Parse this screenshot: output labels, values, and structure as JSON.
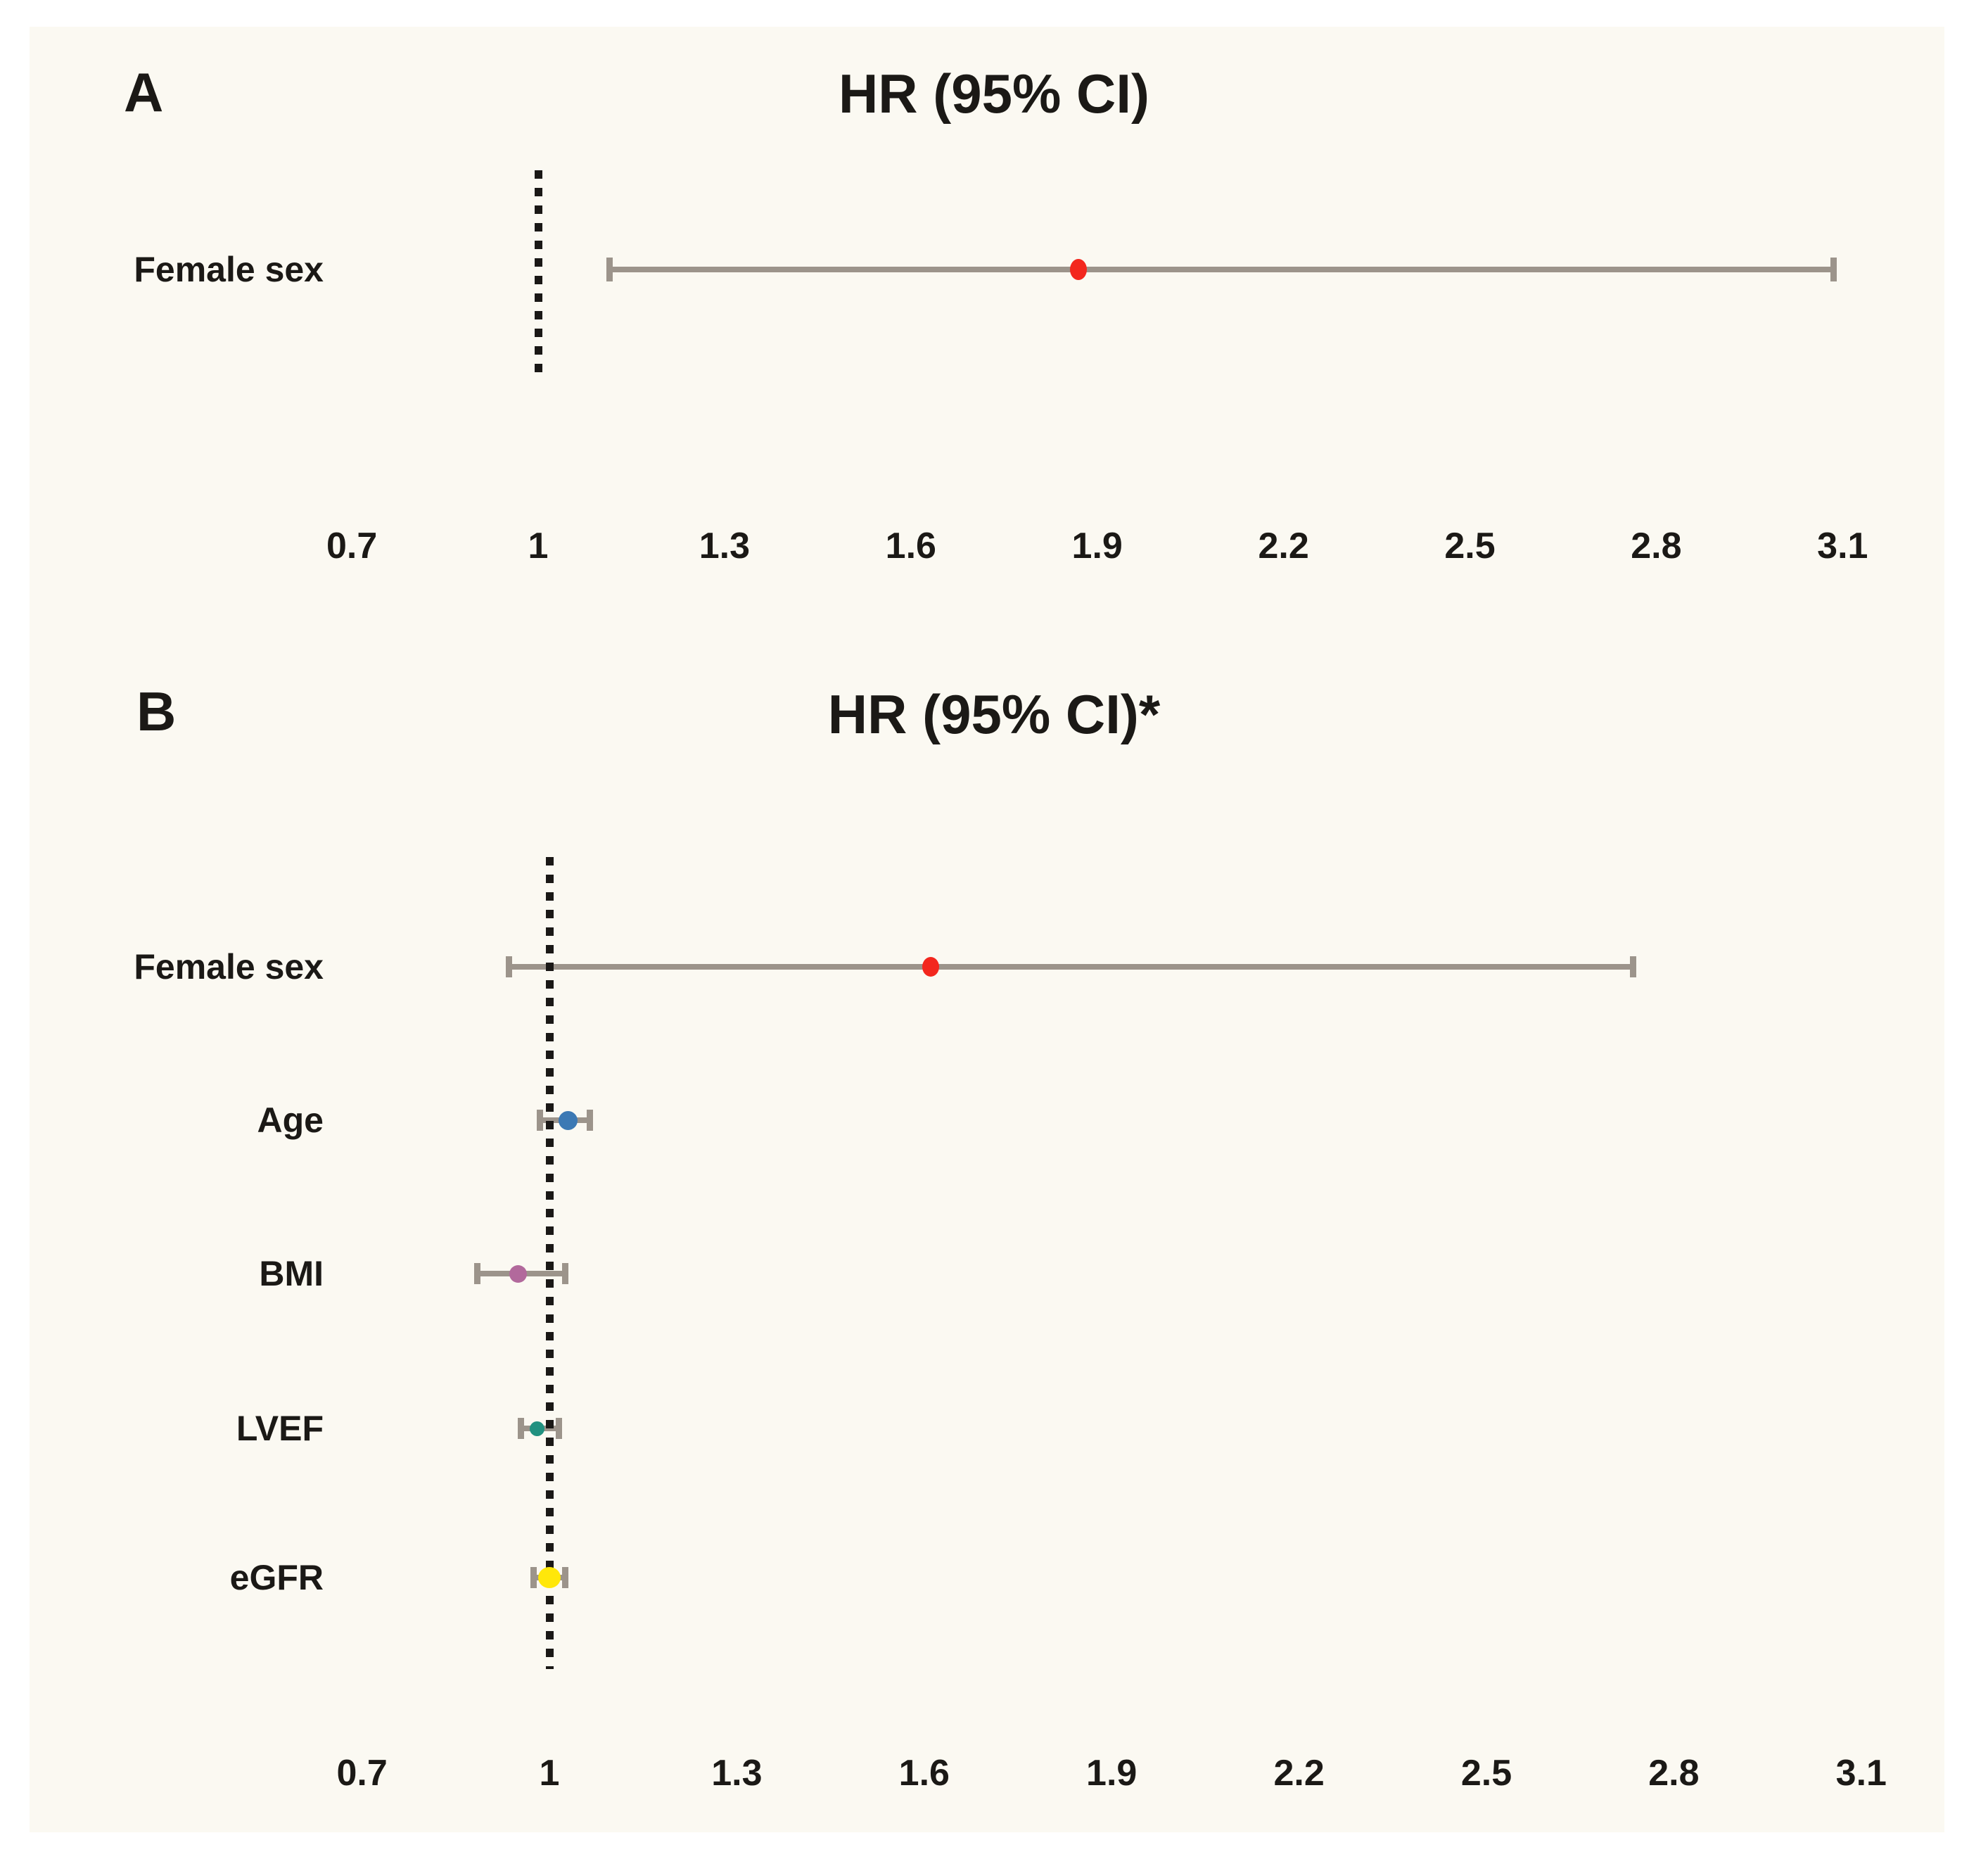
{
  "figure": {
    "background_color": "#FBF9F2",
    "ci_bar_color": "#9C948B",
    "reference_line_color": "#1A1816",
    "text_color": "#1B1916"
  },
  "chart_data": [
    {
      "type": "forest",
      "panel_label": "A",
      "title": "HR (95% CI)",
      "xlabel": "",
      "legend": "none",
      "grid": false,
      "reference_value": 1,
      "x_axis": {
        "tick_labels": [
          "0.7",
          "1",
          "1.3",
          "1.6",
          "1.9",
          "2.2",
          "2.5",
          "2.8",
          "3.1"
        ],
        "tick_values": [
          0.7,
          1,
          1.3,
          1.6,
          1.9,
          2.2,
          2.5,
          2.8,
          3.1
        ],
        "xlim": [
          0.55,
          3.3
        ]
      },
      "rows": [
        {
          "label": "Female sex",
          "hr": 1.87,
          "ci_low": 1.12,
          "ci_high": 3.08,
          "marker_color": "#F3271E"
        }
      ]
    },
    {
      "type": "forest",
      "panel_label": "B",
      "title": "HR (95% CI)*",
      "xlabel": "",
      "legend": "none",
      "grid": false,
      "reference_value": 1,
      "x_axis": {
        "tick_labels": [
          "0.7",
          "1",
          "1.3",
          "1.6",
          "1.9",
          "2.2",
          "2.5",
          "2.8",
          "3.1"
        ],
        "tick_values": [
          0.7,
          1,
          1.3,
          1.6,
          1.9,
          2.2,
          2.5,
          2.8,
          3.1
        ],
        "xlim": [
          0.55,
          3.3
        ]
      },
      "rows": [
        {
          "label": "Female sex",
          "hr": 1.61,
          "ci_low": 0.94,
          "ci_high": 2.73,
          "marker_color": "#F3271E"
        },
        {
          "label": "Age",
          "hr": 1.03,
          "ci_low": 0.99,
          "ci_high": 1.06,
          "marker_color": "#3C79B4"
        },
        {
          "label": "BMI",
          "hr": 0.95,
          "ci_low": 0.89,
          "ci_high": 1.02,
          "marker_color": "#B2699C"
        },
        {
          "label": "LVEF",
          "hr": 0.98,
          "ci_low": 0.96,
          "ci_high": 1.01,
          "marker_color": "#219180"
        },
        {
          "label": "eGFR",
          "hr": 1.0,
          "ci_low": 0.98,
          "ci_high": 1.02,
          "marker_color": "#FFE70A"
        }
      ]
    }
  ]
}
